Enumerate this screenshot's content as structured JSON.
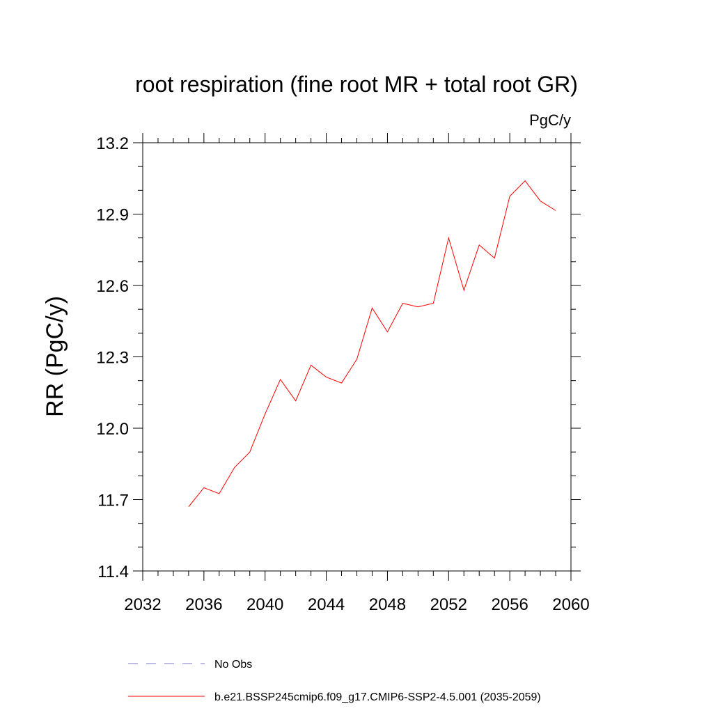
{
  "chart_data": {
    "type": "line",
    "title": "root respiration (fine root MR + total root GR)",
    "units_label": "PgC/y",
    "ylabel": "RR  (PgC/y)",
    "xlabel": "",
    "xlim": [
      2032,
      2060
    ],
    "ylim": [
      11.4,
      13.2
    ],
    "x_ticks": [
      2032,
      2036,
      2040,
      2044,
      2048,
      2052,
      2056,
      2060
    ],
    "x_tick_labels": [
      "2032",
      "2036",
      "2040",
      "2044",
      "2048",
      "2052",
      "2056",
      "2060"
    ],
    "y_ticks": [
      11.4,
      11.7,
      12.0,
      12.3,
      12.6,
      12.9,
      13.2
    ],
    "y_tick_labels": [
      "11.4",
      "11.7",
      "12.0",
      "12.3",
      "12.6",
      "12.9",
      "13.2"
    ],
    "x_minor_step": 1,
    "y_minor_step": 0.1,
    "series": [
      {
        "name": "b.e21.BSSP245cmip6.f09_g17.CMIP6-SSP2-4.5.001 (2035-2059)",
        "color": "#ff0000",
        "x": [
          2035,
          2036,
          2037,
          2038,
          2039,
          2040,
          2041,
          2042,
          2043,
          2044,
          2045,
          2046,
          2047,
          2048,
          2049,
          2050,
          2051,
          2052,
          2053,
          2054,
          2055,
          2056,
          2057,
          2058,
          2059
        ],
        "y": [
          11.67,
          11.75,
          11.725,
          11.835,
          11.9,
          12.06,
          12.205,
          12.115,
          12.265,
          12.215,
          12.19,
          12.29,
          12.505,
          12.405,
          12.525,
          12.51,
          12.525,
          12.8,
          12.58,
          12.77,
          12.715,
          12.975,
          13.04,
          12.955,
          12.915
        ]
      }
    ],
    "legend": [
      {
        "label": "No Obs",
        "color": "#7777cc",
        "style": "dashed"
      },
      {
        "label": "b.e21.BSSP245cmip6.f09_g17.CMIP6-SSP2-4.5.001 (2035-2059)",
        "color": "#ff0000",
        "style": "solid"
      }
    ]
  }
}
